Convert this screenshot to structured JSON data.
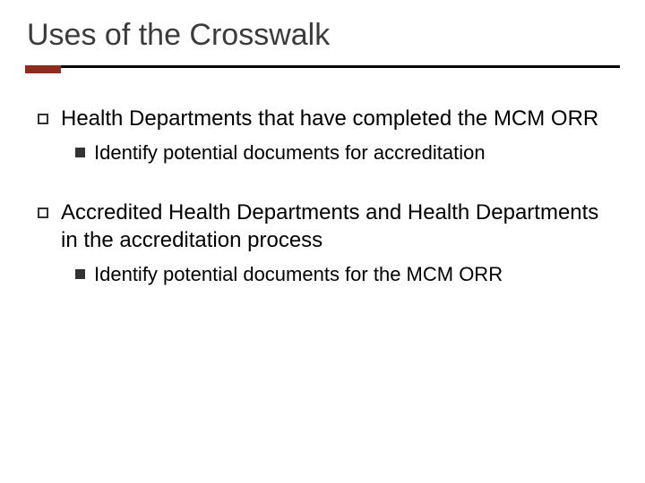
{
  "title": "Uses of the Crosswalk",
  "accent_color": "#8b2e1f",
  "rule_color": "#000000",
  "items": [
    {
      "text": "Health Departments that have completed the MCM ORR",
      "sub": "Identify potential documents for accreditation"
    },
    {
      "text": "Accredited Health Departments and Health Departments in the accreditation process",
      "sub": "Identify potential documents for the MCM ORR"
    }
  ]
}
